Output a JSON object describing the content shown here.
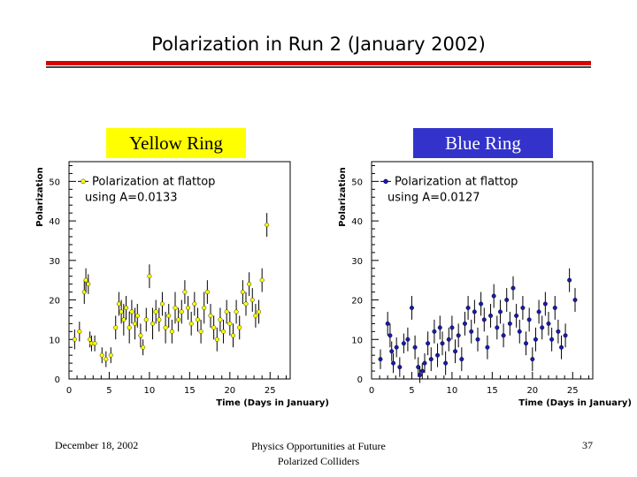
{
  "slide": {
    "title": "Polarization in Run 2 (January 2002)"
  },
  "labels": {
    "yellow_ring": "Yellow Ring",
    "blue_ring": "Blue Ring"
  },
  "footer": {
    "date": "December 18, 2002",
    "center_line1": "Physics Opportunities at Future",
    "center_line2": "Polarized Colliders",
    "page": "37"
  },
  "colors": {
    "yellow": "#ffff00",
    "blue": "#1a1aa6",
    "blue_label": "#3333cc",
    "title_rule": "#d90000"
  },
  "chart_data": [
    {
      "type": "scatter",
      "name": "yellow",
      "ylabel": "Polarization",
      "xlabel": "Time (Days in January)",
      "legend_line1": "Polarization at flattop",
      "legend_line2": "using A=0.0133",
      "legend_position": "top-left",
      "xlim": [
        0,
        27.5
      ],
      "ylim": [
        0,
        55
      ],
      "xticks": [
        0,
        5,
        10,
        15,
        20,
        25
      ],
      "yticks": [
        0,
        10,
        20,
        30,
        40,
        50
      ],
      "marker_color": "#ffff00",
      "points": [
        [
          0.7,
          10,
          2.5
        ],
        [
          1.3,
          12,
          2.5
        ],
        [
          1.9,
          22,
          3
        ],
        [
          2.1,
          25,
          3
        ],
        [
          2.4,
          24,
          2.5
        ],
        [
          2.6,
          10,
          2
        ],
        [
          2.8,
          9,
          2
        ],
        [
          3.2,
          9,
          2
        ],
        [
          4.1,
          6,
          2
        ],
        [
          4.6,
          5,
          2
        ],
        [
          5.2,
          6,
          2
        ],
        [
          5.8,
          13,
          3
        ],
        [
          6.2,
          19,
          3
        ],
        [
          6.5,
          17,
          3
        ],
        [
          6.8,
          15,
          4
        ],
        [
          7.1,
          18,
          3
        ],
        [
          7.5,
          13,
          4
        ],
        [
          7.8,
          17,
          3
        ],
        [
          8.2,
          14,
          4
        ],
        [
          8.5,
          16,
          3
        ],
        [
          8.9,
          11,
          3
        ],
        [
          9.2,
          8,
          2
        ],
        [
          9.6,
          15,
          3
        ],
        [
          10.0,
          26,
          3
        ],
        [
          10.4,
          14,
          4
        ],
        [
          10.8,
          17,
          3
        ],
        [
          11.2,
          15,
          3
        ],
        [
          11.6,
          19,
          3
        ],
        [
          12.0,
          13,
          4
        ],
        [
          12.4,
          16,
          3
        ],
        [
          12.8,
          12,
          3
        ],
        [
          13.2,
          18,
          4
        ],
        [
          13.6,
          15,
          3
        ],
        [
          14.0,
          17,
          3
        ],
        [
          14.4,
          22,
          3
        ],
        [
          14.8,
          18,
          3
        ],
        [
          15.2,
          14,
          3
        ],
        [
          15.6,
          19,
          3
        ],
        [
          16.0,
          15,
          3
        ],
        [
          16.4,
          12,
          3
        ],
        [
          16.8,
          18,
          4
        ],
        [
          17.2,
          22,
          3
        ],
        [
          17.6,
          16,
          3
        ],
        [
          18.0,
          13,
          3
        ],
        [
          18.4,
          10,
          3
        ],
        [
          18.8,
          15,
          3
        ],
        [
          19.2,
          12,
          3
        ],
        [
          19.6,
          17,
          3
        ],
        [
          20.0,
          14,
          3
        ],
        [
          20.4,
          11,
          3
        ],
        [
          20.8,
          17,
          3
        ],
        [
          21.2,
          13,
          3
        ],
        [
          21.6,
          22,
          3
        ],
        [
          22.0,
          19,
          3
        ],
        [
          22.4,
          24,
          3
        ],
        [
          22.8,
          20,
          3
        ],
        [
          23.2,
          16,
          3
        ],
        [
          23.6,
          17,
          3
        ],
        [
          24.0,
          25,
          3
        ],
        [
          24.6,
          39,
          3
        ]
      ]
    },
    {
      "type": "scatter",
      "name": "blue",
      "ylabel": "Polarization",
      "xlabel": "Time (Days in January)",
      "legend_line1": "Polarization at flattop",
      "legend_line2": "using A=0.0127",
      "legend_position": "top-left",
      "xlim": [
        0,
        27.5
      ],
      "ylim": [
        0,
        55
      ],
      "xticks": [
        0,
        5,
        10,
        15,
        20,
        25
      ],
      "yticks": [
        0,
        10,
        20,
        30,
        40,
        50
      ],
      "marker_color": "#1a1aa6",
      "points": [
        [
          1.1,
          5,
          2.5
        ],
        [
          2.0,
          14,
          3
        ],
        [
          2.3,
          11,
          3
        ],
        [
          2.5,
          7,
          2.5
        ],
        [
          2.7,
          4,
          2.5
        ],
        [
          3.1,
          8,
          2.5
        ],
        [
          3.5,
          3,
          2.5
        ],
        [
          4.0,
          9,
          2.5
        ],
        [
          4.5,
          10,
          3
        ],
        [
          5.0,
          18,
          3
        ],
        [
          5.4,
          8,
          3
        ],
        [
          5.8,
          3,
          2.5
        ],
        [
          6.0,
          1,
          2
        ],
        [
          6.3,
          2,
          2
        ],
        [
          6.6,
          4,
          2.5
        ],
        [
          7.0,
          9,
          3
        ],
        [
          7.4,
          5,
          3
        ],
        [
          7.8,
          12,
          3
        ],
        [
          8.2,
          6,
          3
        ],
        [
          8.5,
          13,
          3
        ],
        [
          8.8,
          9,
          3
        ],
        [
          9.2,
          4,
          3
        ],
        [
          9.6,
          10,
          3
        ],
        [
          10.0,
          13,
          3
        ],
        [
          10.4,
          7,
          3
        ],
        [
          10.8,
          11,
          3
        ],
        [
          11.2,
          5,
          3
        ],
        [
          11.6,
          14,
          3
        ],
        [
          12.0,
          18,
          3
        ],
        [
          12.4,
          12,
          3
        ],
        [
          12.8,
          17,
          3
        ],
        [
          13.2,
          10,
          3
        ],
        [
          13.6,
          19,
          3
        ],
        [
          14.0,
          15,
          3
        ],
        [
          14.4,
          8,
          3
        ],
        [
          14.8,
          16,
          3
        ],
        [
          15.2,
          21,
          3
        ],
        [
          15.6,
          13,
          3
        ],
        [
          16.0,
          17,
          3
        ],
        [
          16.4,
          11,
          3
        ],
        [
          16.8,
          20,
          3
        ],
        [
          17.2,
          14,
          3
        ],
        [
          17.6,
          23,
          3
        ],
        [
          18.0,
          16,
          3
        ],
        [
          18.4,
          12,
          3
        ],
        [
          18.8,
          18,
          3
        ],
        [
          19.2,
          9,
          3
        ],
        [
          19.6,
          15,
          3
        ],
        [
          20.0,
          5,
          3
        ],
        [
          20.4,
          10,
          3
        ],
        [
          20.8,
          17,
          3
        ],
        [
          21.2,
          13,
          3
        ],
        [
          21.6,
          19,
          3
        ],
        [
          22.0,
          14,
          3
        ],
        [
          22.4,
          10,
          3
        ],
        [
          22.8,
          18,
          3
        ],
        [
          23.2,
          12,
          3
        ],
        [
          23.6,
          8,
          3
        ],
        [
          24.1,
          11,
          3
        ],
        [
          24.6,
          25,
          3
        ],
        [
          25.3,
          20,
          3
        ]
      ]
    }
  ]
}
